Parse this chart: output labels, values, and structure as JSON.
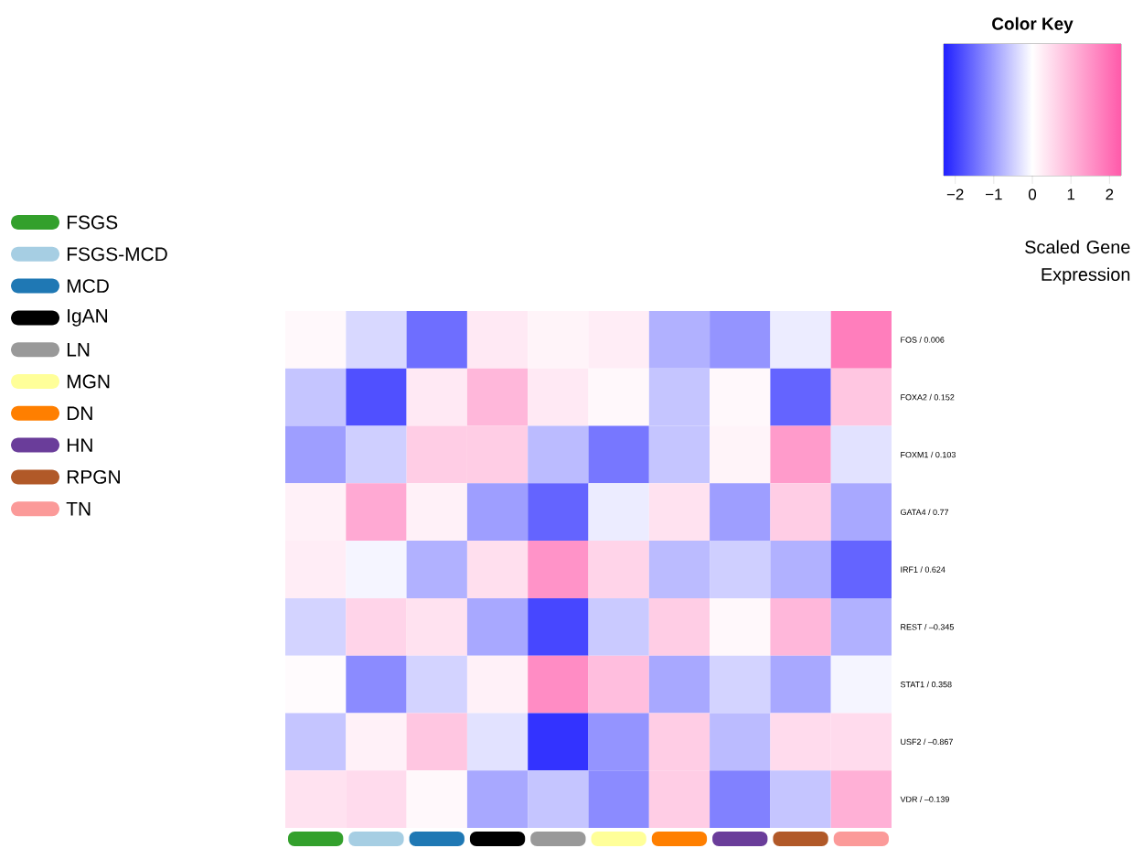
{
  "chart_data": {
    "type": "heatmap",
    "title": "Color Key",
    "clabel": "Scaled Gene Expression",
    "categories": [
      null,
      null,
      null,
      null,
      null,
      null,
      null,
      null,
      null,
      null
    ],
    "annotations": [
      "FSGS",
      "FSGS-MCD",
      "MCD",
      "IgAN",
      "LN",
      "MGN",
      "DN",
      "HN",
      "RPGN",
      "TN"
    ],
    "colors": [
      "#33a02c",
      "#a6cee3",
      "#1f78b4",
      "#000000",
      "#999999",
      "#ffff99",
      "#ff7f00",
      "#6a3d9a",
      "#b15928",
      "#fb9a99"
    ],
    "y_categories": [
      "FOS / 0.006",
      "FOXA2 / 0.152",
      "FOXM1 / 0.103",
      "GATA4 / 0.77",
      "IRF1 / 0.624",
      "REST / –0.345",
      "STAT1 / 0.358",
      "USF2 / –0.867",
      "VDR / –0.139"
    ],
    "cells": [
      [
        0.1,
        -0.4,
        -1.5,
        0.3,
        0.15,
        0.25,
        -0.8,
        -1.1,
        -0.2,
        1.8
      ],
      [
        -0.6,
        -1.8,
        0.3,
        1.0,
        0.3,
        0.1,
        -0.6,
        0.1,
        -1.6,
        0.8
      ],
      [
        -1.0,
        -0.5,
        0.7,
        0.7,
        -0.7,
        -1.4,
        -0.6,
        0.15,
        1.4,
        -0.3
      ],
      [
        0.2,
        1.2,
        0.2,
        -1.0,
        -1.6,
        -0.2,
        0.4,
        -1.0,
        0.7,
        -0.9
      ],
      [
        0.25,
        -0.1,
        -0.8,
        0.45,
        1.5,
        0.6,
        -0.7,
        -0.5,
        -0.8,
        -1.6
      ],
      [
        -0.45,
        0.6,
        0.4,
        -0.9,
        -1.9,
        -0.55,
        0.7,
        0.1,
        1.0,
        -0.8
      ],
      [
        0.05,
        -1.2,
        -0.45,
        0.2,
        1.6,
        0.9,
        -0.9,
        -0.45,
        -0.9,
        -0.1
      ],
      [
        -0.6,
        0.2,
        0.8,
        -0.3,
        -2.1,
        -1.1,
        0.7,
        -0.7,
        0.5,
        0.5
      ],
      [
        0.4,
        0.5,
        0.1,
        -0.9,
        -0.6,
        -1.2,
        0.7,
        -1.3,
        -0.6,
        1.1
      ]
    ],
    "clim": [
      -2.3,
      2.3
    ],
    "cticks": [
      {
        "value": -2,
        "label": "−2"
      },
      {
        "value": -1,
        "label": "−1"
      },
      0,
      1,
      2
    ]
  }
}
